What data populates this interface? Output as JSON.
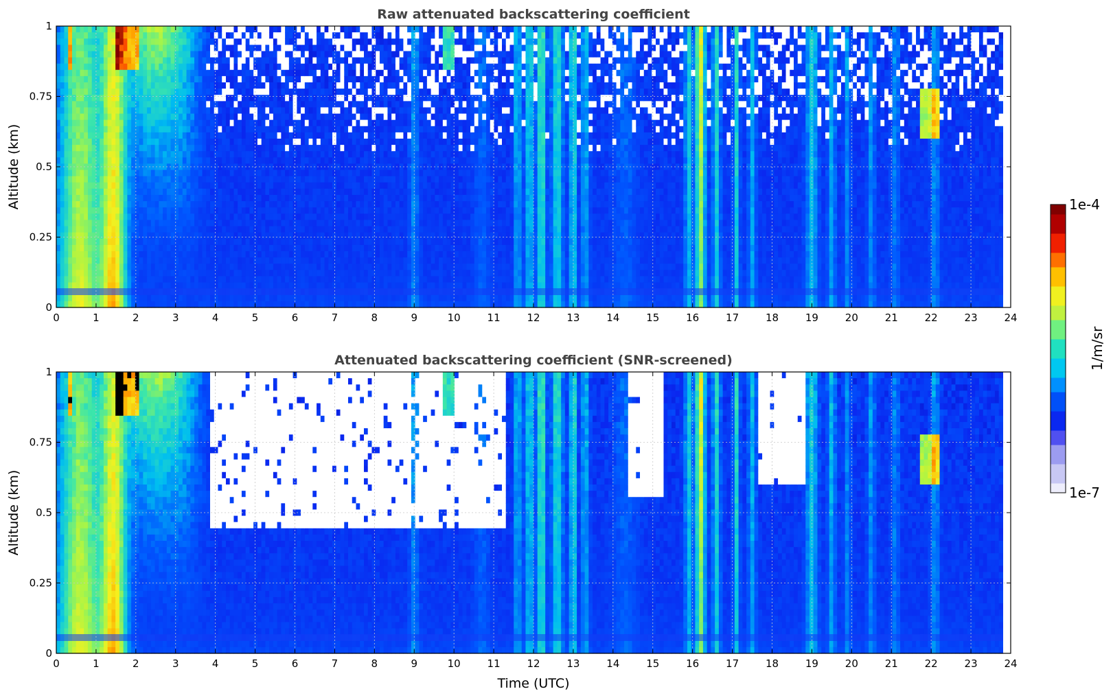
{
  "chart_data": [
    {
      "type": "heatmap",
      "title": "Raw attenuated backscattering coefficient",
      "xlabel": "",
      "ylabel": "Altitude (km)",
      "xlim": [
        0,
        24
      ],
      "ylim": [
        0,
        1
      ],
      "xticks": [
        "0",
        "1",
        "2",
        "3",
        "4",
        "5",
        "6",
        "7",
        "8",
        "9",
        "10",
        "11",
        "12",
        "13",
        "14",
        "15",
        "16",
        "17",
        "18",
        "19",
        "20",
        "21",
        "22",
        "23",
        "24"
      ],
      "yticks": [
        "0",
        "0.25",
        "0.5",
        "0.75",
        "1"
      ],
      "grid": true,
      "screened": false,
      "data_end_hour": 23.8,
      "vertical_plumes_hours": [
        0.3,
        0.6,
        1.0,
        1.4,
        1.7,
        2.2,
        2.6,
        3.3,
        9.0,
        9.8,
        11.6,
        11.9,
        12.2,
        12.6,
        13.0,
        13.3,
        15.9,
        16.2,
        16.6,
        17.1,
        17.5,
        19.0,
        19.5,
        19.9,
        20.5,
        21.1,
        21.6,
        22.1
      ]
    },
    {
      "type": "heatmap",
      "title": "Attenuated backscattering coefficient (SNR-screened)",
      "xlabel": "Time (UTC)",
      "ylabel": "Altitude (km)",
      "xlim": [
        0,
        24
      ],
      "ylim": [
        0,
        1
      ],
      "xticks": [
        "0",
        "1",
        "2",
        "3",
        "4",
        "5",
        "6",
        "7",
        "8",
        "9",
        "10",
        "11",
        "12",
        "13",
        "14",
        "15",
        "16",
        "17",
        "18",
        "19",
        "20",
        "21",
        "22",
        "23",
        "24"
      ],
      "yticks": [
        "0",
        "0.25",
        "0.5",
        "0.75",
        "1"
      ],
      "grid": true,
      "screened": true,
      "data_end_hour": 23.8,
      "vertical_plumes_hours": [
        0.3,
        0.6,
        1.0,
        1.4,
        1.7,
        2.2,
        2.6,
        3.3,
        9.0,
        9.8,
        11.6,
        11.9,
        12.2,
        12.6,
        13.0,
        13.3,
        15.9,
        16.2,
        16.6,
        17.1,
        17.5,
        19.0,
        19.5,
        19.9,
        20.5,
        21.1,
        21.6,
        22.1
      ]
    }
  ],
  "colorbar": {
    "label": "1/m/sr",
    "max_label": "1e-4",
    "min_label": "1e-7",
    "colors": [
      "#eeeefc",
      "#c8c8f4",
      "#9c9cf0",
      "#5050f0",
      "#0a28f0",
      "#0050f8",
      "#0090ff",
      "#00c8f0",
      "#20e0c0",
      "#70f080",
      "#c0f040",
      "#f0f020",
      "#ffc000",
      "#ff7000",
      "#f02000",
      "#b00000",
      "#800000"
    ]
  }
}
